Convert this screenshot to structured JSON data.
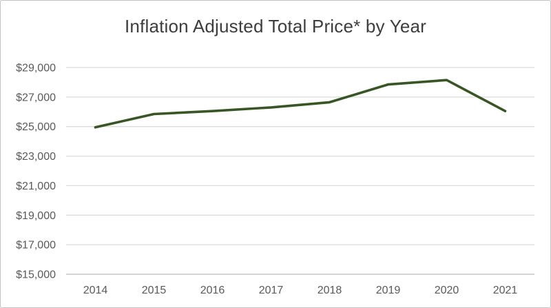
{
  "figure": {
    "title": "Inflation Adjusted Total Price* by Year"
  },
  "chart_data": {
    "type": "line",
    "title": "Inflation Adjusted Total Price* by Year",
    "xlabel": "",
    "ylabel": "",
    "categories": [
      "2014",
      "2015",
      "2016",
      "2017",
      "2018",
      "2019",
      "2020",
      "2021"
    ],
    "series": [
      {
        "name": "Inflation Adjusted Total Price",
        "values": [
          24950,
          25850,
          26050,
          26300,
          26650,
          27850,
          28150,
          26050
        ]
      }
    ],
    "ylim": [
      15000,
      29000
    ],
    "ytick_step": 2000,
    "ytick_labels": [
      "$15,000",
      "$17,000",
      "$19,000",
      "$21,000",
      "$23,000",
      "$25,000",
      "$27,000",
      "$29,000"
    ],
    "grid": true,
    "legend": "none",
    "colors": {
      "line": "#375623",
      "gridline": "#dbdbdb",
      "axis_line": "#c6c6c6",
      "tick_label": "#595959",
      "title": "#3d3d3d",
      "background": "#ffffff",
      "border": "#c2c2c2"
    }
  }
}
